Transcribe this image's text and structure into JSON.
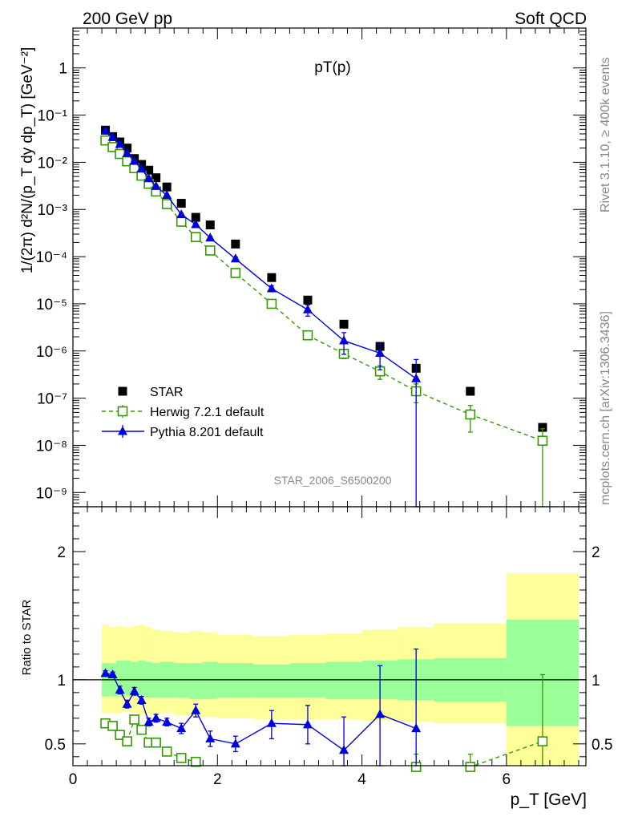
{
  "header": {
    "left": "200 GeV pp",
    "right": "Soft QCD"
  },
  "side": {
    "rivet": "Rivet 3.1.10, ≥ 400k events",
    "mcplots": "mcplots.cern.ch [arXiv:1306.3436]"
  },
  "chart_data": {
    "type": "scatter",
    "title": "pT(p)",
    "analysis_label": "STAR_2006_S6500200",
    "xlabel": "p_T [GeV]",
    "ylabel": "1/(2π) d²N/(p_T dy dp_T) [GeV⁻²]",
    "ratio_ylabel": "Ratio to STAR",
    "xlim": [
      0,
      7.1
    ],
    "ylim": [
      5e-10,
      7
    ],
    "yscale": "log",
    "ratio_ylim": [
      0.33,
      2.35
    ],
    "x_ticks": [
      "0",
      "2",
      "4",
      "6"
    ],
    "y_ticks": [
      "10⁻⁹",
      "10⁻⁸",
      "10⁻⁷",
      "10⁻⁶",
      "10⁻⁵",
      "10⁻⁴",
      "10⁻³",
      "10⁻²",
      "10⁻¹",
      "1"
    ],
    "ratio_ticks": [
      "0.5",
      "1",
      "2"
    ],
    "legend_position": "bottom-left",
    "series": [
      {
        "name": "STAR",
        "style": "marker",
        "color": "#000000",
        "x": [
          0.45,
          0.55,
          0.65,
          0.75,
          0.85,
          0.95,
          1.05,
          1.15,
          1.3,
          1.5,
          1.7,
          1.9,
          2.25,
          2.75,
          3.25,
          3.75,
          4.25,
          4.75,
          5.5,
          6.5
        ],
        "y": [
          0.048,
          0.035,
          0.027,
          0.02,
          0.012,
          0.009,
          0.0068,
          0.0047,
          0.003,
          0.00135,
          0.00068,
          0.00047,
          0.000185,
          3.6e-05,
          1.2e-05,
          3.7e-06,
          1.25e-06,
          4.3e-07,
          1.4e-07,
          2.4e-08
        ],
        "band_x_edges": [
          0.4,
          0.5,
          0.6,
          0.7,
          0.8,
          0.9,
          1.0,
          1.1,
          1.2,
          1.4,
          1.6,
          1.8,
          2.0,
          2.5,
          3.0,
          3.5,
          4.0,
          4.5,
          5.0,
          6.0,
          7.0
        ],
        "band_inner": [
          [
            0.87,
            1.13
          ],
          [
            0.87,
            1.13
          ],
          [
            0.87,
            1.15
          ],
          [
            0.88,
            1.15
          ],
          [
            0.87,
            1.14
          ],
          [
            0.87,
            1.15
          ],
          [
            0.86,
            1.14
          ],
          [
            0.86,
            1.13
          ],
          [
            0.86,
            1.14
          ],
          [
            0.86,
            1.13
          ],
          [
            0.85,
            1.13
          ],
          [
            0.85,
            1.14
          ],
          [
            0.86,
            1.13
          ],
          [
            0.86,
            1.12
          ],
          [
            0.86,
            1.13
          ],
          [
            0.85,
            1.14
          ],
          [
            0.85,
            1.15
          ],
          [
            0.84,
            1.16
          ],
          [
            0.83,
            1.17
          ],
          [
            0.64,
            1.47
          ]
        ],
        "band_outer": [
          [
            0.74,
            1.43
          ],
          [
            0.74,
            1.41
          ],
          [
            0.74,
            1.42
          ],
          [
            0.75,
            1.41
          ],
          [
            0.74,
            1.42
          ],
          [
            0.73,
            1.43
          ],
          [
            0.73,
            1.41
          ],
          [
            0.73,
            1.39
          ],
          [
            0.74,
            1.38
          ],
          [
            0.72,
            1.37
          ],
          [
            0.71,
            1.38
          ],
          [
            0.71,
            1.37
          ],
          [
            0.7,
            1.35
          ],
          [
            0.69,
            1.34
          ],
          [
            0.69,
            1.35
          ],
          [
            0.69,
            1.36
          ],
          [
            0.68,
            1.39
          ],
          [
            0.67,
            1.41
          ],
          [
            0.66,
            1.44
          ],
          [
            0.3,
            1.83
          ]
        ]
      },
      {
        "name": "Herwig 7.2.1 default",
        "style": "dashed-open-square",
        "color": "#339900",
        "x": [
          0.45,
          0.55,
          0.65,
          0.75,
          0.85,
          0.95,
          1.05,
          1.15,
          1.3,
          1.5,
          1.7,
          1.9,
          2.25,
          2.75,
          3.25,
          3.75,
          4.25,
          4.75,
          5.5,
          6.5
        ],
        "y": [
          0.029,
          0.021,
          0.015,
          0.0105,
          0.0075,
          0.0052,
          0.0035,
          0.0024,
          0.0013,
          0.00055,
          0.00026,
          0.000135,
          4.5e-05,
          1e-05,
          2.15e-06,
          8.7e-07,
          3.7e-07,
          1.4e-07,
          4.5e-08,
          1.25e-08
        ],
        "y_err_low": [
          0.0015,
          0.001,
          0.0008,
          0.0006,
          0.0004,
          0.0003,
          0.0002,
          0.00015,
          8e-05,
          4e-05,
          2e-05,
          1e-05,
          3e-06,
          8e-07,
          2.5e-07,
          1.8e-07,
          1.2e-07,
          6e-08,
          2.6e-08,
          1.25e-08
        ],
        "y_err_high": [
          0.0015,
          0.001,
          0.0008,
          0.0006,
          0.0004,
          0.0003,
          0.0002,
          0.00015,
          8e-05,
          4e-05,
          2e-05,
          1e-05,
          3e-06,
          8e-07,
          2.5e-07,
          1.8e-07,
          1.2e-07,
          6e-08,
          2.5e-08,
          1e-08
        ],
        "ratio": [
          0.66,
          0.64,
          0.57,
          0.52,
          0.69,
          0.61,
          0.51,
          0.51,
          0.44,
          0.39,
          0.36,
          0.29,
          0.24,
          0.28,
          0.18,
          0.23,
          0.29,
          0.32,
          0.32,
          0.52
        ],
        "ratio_err_low": [
          0.02,
          0.02,
          0.02,
          0.02,
          0.02,
          0.02,
          0.02,
          0.02,
          0.02,
          0.02,
          0.02,
          0.02,
          0.02,
          0.02,
          0.02,
          0.05,
          0.08,
          0.1,
          0.1,
          0.3
        ],
        "ratio_err_high": [
          0.02,
          0.02,
          0.02,
          0.02,
          0.02,
          0.02,
          0.02,
          0.02,
          0.02,
          0.02,
          0.02,
          0.02,
          0.02,
          0.02,
          0.02,
          0.05,
          0.08,
          0.1,
          0.1,
          0.52
        ]
      },
      {
        "name": "Pythia 8.201 default",
        "style": "solid-filled-triangle",
        "color": "#0000dd",
        "x": [
          0.45,
          0.55,
          0.65,
          0.75,
          0.85,
          0.95,
          1.05,
          1.15,
          1.3,
          1.5,
          1.7,
          1.9,
          2.25,
          2.75,
          3.25,
          3.75,
          4.25,
          4.75
        ],
        "y": [
          0.046,
          0.034,
          0.024,
          0.0155,
          0.0105,
          0.0072,
          0.0045,
          0.0031,
          0.002,
          0.00078,
          0.00048,
          0.00025,
          9e-05,
          2.1e-05,
          7.5e-06,
          1.65e-06,
          9e-07,
          2.6e-07
        ],
        "y_err_low": [
          0.002,
          0.0015,
          0.001,
          0.0007,
          0.0005,
          0.0004,
          0.0003,
          0.0002,
          0.00012,
          5e-05,
          3e-05,
          2e-05,
          8e-06,
          3e-06,
          2e-06,
          8e-07,
          5e-07,
          2.6e-07
        ],
        "y_err_high": [
          0.002,
          0.0015,
          0.001,
          0.0007,
          0.0005,
          0.0004,
          0.0003,
          0.0002,
          0.00012,
          5e-05,
          3e-05,
          2e-05,
          8e-06,
          3e-06,
          2e-06,
          8e-07,
          5e-07,
          4e-07
        ],
        "ratio": [
          1.05,
          1.04,
          0.92,
          0.81,
          0.91,
          0.84,
          0.67,
          0.7,
          0.67,
          0.62,
          0.76,
          0.54,
          0.5,
          0.66,
          0.65,
          0.45,
          0.73,
          0.62
        ],
        "ratio_err_low": [
          0.02,
          0.02,
          0.03,
          0.03,
          0.03,
          0.03,
          0.03,
          0.03,
          0.03,
          0.04,
          0.05,
          0.06,
          0.06,
          0.12,
          0.15,
          0.2,
          0.5,
          0.5
        ],
        "ratio_err_high": [
          0.02,
          0.02,
          0.03,
          0.03,
          0.03,
          0.03,
          0.03,
          0.03,
          0.03,
          0.04,
          0.05,
          0.06,
          0.06,
          0.1,
          0.15,
          0.26,
          0.38,
          0.62
        ]
      }
    ]
  }
}
